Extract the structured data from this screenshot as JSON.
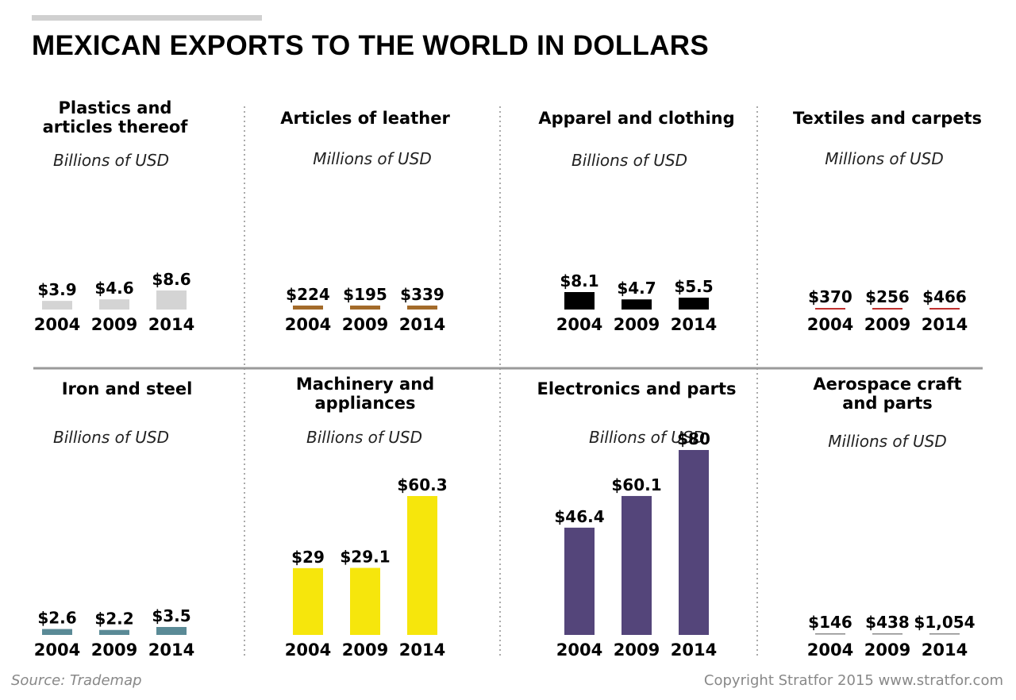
{
  "title": "MEXICAN EXPORTS TO THE WORLD IN DOLLARS",
  "source": "Source: Trademap",
  "copyright": "Copyright Stratfor 2015   www.stratfor.com",
  "chart_data": [
    {
      "type": "bar",
      "title_lines": [
        "Plastics and",
        "articles thereof"
      ],
      "unit": "Billions of USD",
      "categories": [
        "2004",
        "2009",
        "2014"
      ],
      "values": [
        3.9,
        4.6,
        8.6
      ],
      "labels": [
        "$3.9",
        "$4.6",
        "$8.6"
      ],
      "color": "#d4d4d4"
    },
    {
      "type": "bar",
      "title_lines": [
        "Articles of leather"
      ],
      "unit": "Millions of USD",
      "categories": [
        "2004",
        "2009",
        "2014"
      ],
      "values": [
        224,
        195,
        339
      ],
      "labels": [
        "$224",
        "$195",
        "$339"
      ],
      "color": "#a36b2a"
    },
    {
      "type": "bar",
      "title_lines": [
        "Apparel and clothing"
      ],
      "unit": "Billions of USD",
      "categories": [
        "2004",
        "2009",
        "2014"
      ],
      "values": [
        8.1,
        4.7,
        5.5
      ],
      "labels": [
        "$8.1",
        "$4.7",
        "$5.5"
      ],
      "color": "#000000"
    },
    {
      "type": "bar",
      "title_lines": [
        "Textiles and carpets"
      ],
      "unit": "Millions of USD",
      "categories": [
        "2004",
        "2009",
        "2014"
      ],
      "values": [
        370,
        256,
        466
      ],
      "labels": [
        "$370",
        "$256",
        "$466"
      ],
      "color": "#c0302e"
    },
    {
      "type": "bar",
      "title_lines": [
        "Iron and steel"
      ],
      "unit": "Billions of USD",
      "categories": [
        "2004",
        "2009",
        "2014"
      ],
      "values": [
        2.6,
        2.2,
        3.5
      ],
      "labels": [
        "$2.6",
        "$2.2",
        "$3.5"
      ],
      "color": "#5a8a96"
    },
    {
      "type": "bar",
      "title_lines": [
        "Machinery and",
        "appliances"
      ],
      "unit": "Billions of USD",
      "categories": [
        "2004",
        "2009",
        "2014"
      ],
      "values": [
        29,
        29.1,
        60.3
      ],
      "labels": [
        "$29",
        "$29.1",
        "$60.3"
      ],
      "color": "#f6e60c"
    },
    {
      "type": "bar",
      "title_lines": [
        "Electronics and parts"
      ],
      "unit": "Billions of USD",
      "categories": [
        "2004",
        "2009",
        "2014"
      ],
      "values": [
        46.4,
        60.1,
        80
      ],
      "labels": [
        "$46.4",
        "$60.1",
        "$80"
      ],
      "color": "#54457a"
    },
    {
      "type": "bar",
      "title_lines": [
        "Aerospace craft",
        "and parts"
      ],
      "unit": "Millions of USD",
      "categories": [
        "2004",
        "2009",
        "2014"
      ],
      "values": [
        146,
        438,
        1054
      ],
      "labels": [
        "$146",
        "$438",
        "$1,054"
      ],
      "color": "#8a8a8a"
    }
  ]
}
